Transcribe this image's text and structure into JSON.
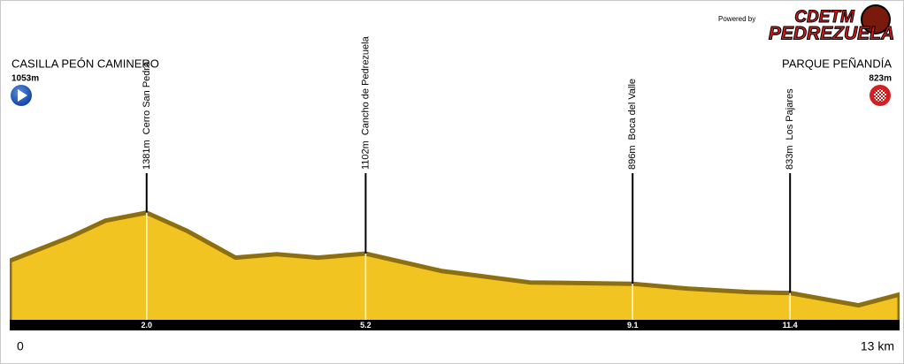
{
  "branding": {
    "powered_by": "Powered by",
    "logo_top": "CDETM",
    "logo_bottom": "PEDREZUELA"
  },
  "chart_data": {
    "type": "area",
    "start_name": "CASILLA PEÓN CAMINERO",
    "start_altitude_label": "1053m",
    "finish_name": "PARQUE PEÑANDÍA",
    "finish_altitude_label": "823m",
    "x": [
      0,
      0.9,
      1.4,
      2.0,
      2.6,
      3.3,
      3.9,
      4.5,
      5.2,
      6.3,
      7.6,
      9.1,
      9.9,
      10.8,
      11.4,
      12.4,
      13
    ],
    "values": [
      1053,
      1218,
      1327,
      1381,
      1255,
      1074,
      1098,
      1074,
      1102,
      984,
      905,
      896,
      863,
      839,
      833,
      749,
      823
    ],
    "color": "#f2c421",
    "edge_color": "#8d6f12",
    "xlim": [
      0,
      13
    ],
    "ylim": [
      650,
      1500
    ],
    "xticks": [
      0,
      {
        "value": 13,
        "label": "13 km"
      }
    ],
    "waypoints": {
      "x": [
        2.0,
        5.2,
        9.1,
        11.4
      ],
      "x_labels": [
        "2.0",
        "5.2",
        "9.1",
        "11.4"
      ],
      "values": [
        1381,
        1102,
        896,
        833
      ],
      "value_labels": [
        "1381m",
        "1102m",
        "896m",
        "833m"
      ],
      "names": [
        "Cerro San Pedro",
        "Cancho de Pedrezuela",
        "Boca del Valle",
        "Los Pajares"
      ]
    }
  }
}
